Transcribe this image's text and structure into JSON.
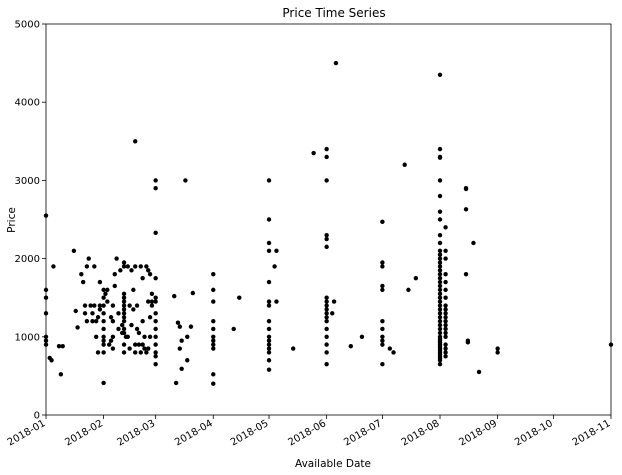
{
  "chart_data": {
    "type": "scatter",
    "title": "Price Time Series",
    "xlabel": "Available Date",
    "ylabel": "Price",
    "xlim": [
      "2018-01-01",
      "2018-11-01"
    ],
    "ylim": [
      0,
      5000
    ],
    "x_ticks": [
      "2018-01",
      "2018-02",
      "2018-03",
      "2018-04",
      "2018-05",
      "2018-06",
      "2018-07",
      "2018-08",
      "2018-09",
      "2018-10",
      "2018-11"
    ],
    "y_ticks": [
      "0",
      "1000",
      "2000",
      "3000",
      "4000",
      "5000"
    ],
    "grid": false,
    "marker_color": "#000000",
    "x": [
      "2018-01-01",
      "2018-01-01",
      "2018-01-01",
      "2018-01-01",
      "2018-01-01",
      "2018-01-01",
      "2018-01-01",
      "2018-01-03",
      "2018-01-04",
      "2018-01-05",
      "2018-01-08",
      "2018-01-09",
      "2018-01-10",
      "2018-01-16",
      "2018-01-17",
      "2018-01-18",
      "2018-01-20",
      "2018-01-21",
      "2018-01-22",
      "2018-01-22",
      "2018-01-23",
      "2018-01-23",
      "2018-01-24",
      "2018-01-25",
      "2018-01-26",
      "2018-01-26",
      "2018-01-27",
      "2018-01-27",
      "2018-01-28",
      "2018-01-28",
      "2018-01-29",
      "2018-01-29",
      "2018-01-30",
      "2018-01-30",
      "2018-01-30",
      "2018-02-01",
      "2018-02-01",
      "2018-02-01",
      "2018-02-01",
      "2018-02-01",
      "2018-02-01",
      "2018-02-01",
      "2018-02-01",
      "2018-02-01",
      "2018-02-01",
      "2018-02-01",
      "2018-02-02",
      "2018-02-03",
      "2018-02-03",
      "2018-02-04",
      "2018-02-05",
      "2018-02-05",
      "2018-02-06",
      "2018-02-06",
      "2018-02-06",
      "2018-02-06",
      "2018-02-07",
      "2018-02-07",
      "2018-02-08",
      "2018-02-09",
      "2018-02-09",
      "2018-02-10",
      "2018-02-11",
      "2018-02-11",
      "2018-02-12",
      "2018-02-12",
      "2018-02-12",
      "2018-02-12",
      "2018-02-12",
      "2018-02-12",
      "2018-02-12",
      "2018-02-12",
      "2018-02-12",
      "2018-02-12",
      "2018-02-12",
      "2018-02-12",
      "2018-02-12",
      "2018-02-12",
      "2018-02-13",
      "2018-02-14",
      "2018-02-14",
      "2018-02-15",
      "2018-02-15",
      "2018-02-16",
      "2018-02-16",
      "2018-02-17",
      "2018-02-17",
      "2018-02-18",
      "2018-02-18",
      "2018-02-18",
      "2018-02-18",
      "2018-02-19",
      "2018-02-19",
      "2018-02-20",
      "2018-02-20",
      "2018-02-21",
      "2018-02-21",
      "2018-02-22",
      "2018-02-22",
      "2018-02-22",
      "2018-02-23",
      "2018-02-23",
      "2018-02-24",
      "2018-02-24",
      "2018-02-25",
      "2018-02-25",
      "2018-02-25",
      "2018-02-26",
      "2018-02-26",
      "2018-02-26",
      "2018-02-27",
      "2018-02-27",
      "2018-02-27",
      "2018-03-01",
      "2018-03-01",
      "2018-03-01",
      "2018-03-01",
      "2018-03-01",
      "2018-03-01",
      "2018-03-01",
      "2018-03-01",
      "2018-03-01",
      "2018-03-01",
      "2018-03-01",
      "2018-03-01",
      "2018-03-01",
      "2018-03-01",
      "2018-03-11",
      "2018-03-12",
      "2018-03-13",
      "2018-03-14",
      "2018-03-14",
      "2018-03-15",
      "2018-03-15",
      "2018-03-17",
      "2018-03-18",
      "2018-03-18",
      "2018-03-20",
      "2018-03-21",
      "2018-04-01",
      "2018-04-01",
      "2018-04-01",
      "2018-04-01",
      "2018-04-01",
      "2018-04-01",
      "2018-04-01",
      "2018-04-01",
      "2018-04-01",
      "2018-04-01",
      "2018-04-01",
      "2018-04-12",
      "2018-04-15",
      "2018-05-01",
      "2018-05-01",
      "2018-05-01",
      "2018-05-01",
      "2018-05-01",
      "2018-05-01",
      "2018-05-01",
      "2018-05-01",
      "2018-05-01",
      "2018-05-01",
      "2018-05-01",
      "2018-05-01",
      "2018-05-01",
      "2018-05-01",
      "2018-05-01",
      "2018-05-01",
      "2018-05-04",
      "2018-05-05",
      "2018-05-05",
      "2018-05-14",
      "2018-05-25",
      "2018-06-01",
      "2018-06-01",
      "2018-06-01",
      "2018-06-01",
      "2018-06-01",
      "2018-06-01",
      "2018-06-01",
      "2018-06-01",
      "2018-06-01",
      "2018-06-01",
      "2018-06-01",
      "2018-06-01",
      "2018-06-01",
      "2018-06-01",
      "2018-06-01",
      "2018-06-01",
      "2018-06-01",
      "2018-06-01",
      "2018-06-04",
      "2018-06-05",
      "2018-06-06",
      "2018-06-14",
      "2018-06-20",
      "2018-07-01",
      "2018-07-01",
      "2018-07-01",
      "2018-07-01",
      "2018-07-01",
      "2018-07-01",
      "2018-07-01",
      "2018-07-01",
      "2018-07-01",
      "2018-07-01",
      "2018-07-01",
      "2018-07-05",
      "2018-07-07",
      "2018-07-13",
      "2018-07-15",
      "2018-07-19",
      "2018-08-01",
      "2018-08-01",
      "2018-08-01",
      "2018-08-01",
      "2018-08-01",
      "2018-08-01",
      "2018-08-01",
      "2018-08-01",
      "2018-08-01",
      "2018-08-01",
      "2018-08-01",
      "2018-08-01",
      "2018-08-01",
      "2018-08-01",
      "2018-08-01",
      "2018-08-01",
      "2018-08-01",
      "2018-08-01",
      "2018-08-01",
      "2018-08-01",
      "2018-08-01",
      "2018-08-01",
      "2018-08-01",
      "2018-08-01",
      "2018-08-01",
      "2018-08-01",
      "2018-08-01",
      "2018-08-01",
      "2018-08-01",
      "2018-08-01",
      "2018-08-01",
      "2018-08-01",
      "2018-08-01",
      "2018-08-01",
      "2018-08-01",
      "2018-08-01",
      "2018-08-01",
      "2018-08-01",
      "2018-08-01",
      "2018-08-01",
      "2018-08-01",
      "2018-08-01",
      "2018-08-01",
      "2018-08-01",
      "2018-08-01",
      "2018-08-01",
      "2018-08-04",
      "2018-08-04",
      "2018-08-04",
      "2018-08-04",
      "2018-08-04",
      "2018-08-04",
      "2018-08-04",
      "2018-08-04",
      "2018-08-04",
      "2018-08-04",
      "2018-08-04",
      "2018-08-04",
      "2018-08-04",
      "2018-08-04",
      "2018-08-04",
      "2018-08-04",
      "2018-08-04",
      "2018-08-04",
      "2018-08-04",
      "2018-08-04",
      "2018-08-15",
      "2018-08-15",
      "2018-08-15",
      "2018-08-15",
      "2018-08-16",
      "2018-08-16",
      "2018-08-19",
      "2018-08-22",
      "2018-09-01",
      "2018-09-01",
      "2018-11-01"
    ],
    "y": [
      2550,
      1600,
      1500,
      1300,
      1000,
      950,
      900,
      730,
      700,
      1900,
      880,
      520,
      880,
      2100,
      1330,
      1120,
      1800,
      1700,
      1400,
      1300,
      1200,
      1900,
      2000,
      1400,
      1300,
      1200,
      1900,
      1400,
      1200,
      1000,
      1250,
      800,
      1700,
      1400,
      1350,
      1600,
      1500,
      1400,
      1300,
      1200,
      1100,
      1000,
      950,
      900,
      800,
      410,
      1550,
      1600,
      1450,
      900,
      950,
      1250,
      1400,
      1200,
      1000,
      850,
      1800,
      1650,
      2000,
      1300,
      1100,
      1850,
      1150,
      1050,
      1950,
      1900,
      1550,
      1500,
      1450,
      1400,
      1350,
      1300,
      1250,
      1200,
      1100,
      1050,
      900,
      800,
      1000,
      1900,
      1000,
      1400,
      850,
      1850,
      1150,
      1600,
      1350,
      3500,
      1900,
      900,
      800,
      1400,
      1100,
      1050,
      900,
      1900,
      800,
      1750,
      1200,
      900,
      1000,
      850,
      1900,
      800,
      1850,
      1450,
      850,
      1800,
      1250,
      1000,
      1550,
      1450,
      1400,
      3000,
      2900,
      2330,
      1750,
      1500,
      1450,
      1300,
      1200,
      1100,
      1000,
      900,
      800,
      750,
      650,
      1520,
      410,
      1180,
      1130,
      850,
      950,
      590,
      3000,
      1000,
      700,
      1130,
      1560,
      1800,
      1600,
      1450,
      1200,
      1000,
      950,
      900,
      850,
      520,
      400,
      1100,
      1100,
      1500,
      3000,
      2500,
      2200,
      2100,
      1700,
      1450,
      1400,
      1200,
      1100,
      1000,
      950,
      900,
      850,
      800,
      700,
      580,
      1900,
      2100,
      1450,
      850,
      3350,
      3400,
      3300,
      3000,
      2300,
      2250,
      2150,
      1500,
      1450,
      1400,
      1350,
      1300,
      1250,
      1200,
      1100,
      1000,
      900,
      800,
      650,
      1300,
      1450,
      4500,
      880,
      1000,
      2470,
      1950,
      1900,
      1650,
      1600,
      1200,
      1100,
      1000,
      950,
      900,
      650,
      850,
      800,
      3200,
      1600,
      1750,
      4350,
      3400,
      3300,
      3290,
      3000,
      2800,
      2600,
      2500,
      2300,
      2200,
      2100,
      2050,
      2000,
      1950,
      1900,
      1850,
      1800,
      1750,
      1700,
      1650,
      1600,
      1550,
      1500,
      1450,
      1400,
      1350,
      1300,
      1250,
      1200,
      1150,
      1100,
      1050,
      1000,
      975,
      950,
      925,
      900,
      875,
      850,
      825,
      800,
      775,
      750,
      725,
      700,
      650,
      2400,
      2100,
      2000,
      1800,
      1700,
      1600,
      1500,
      1400,
      1350,
      1300,
      1250,
      1200,
      1150,
      1100,
      1050,
      1000,
      900,
      850,
      800,
      750,
      2900,
      2890,
      2630,
      1800,
      950,
      930,
      2200,
      550,
      850,
      800,
      900
    ]
  }
}
